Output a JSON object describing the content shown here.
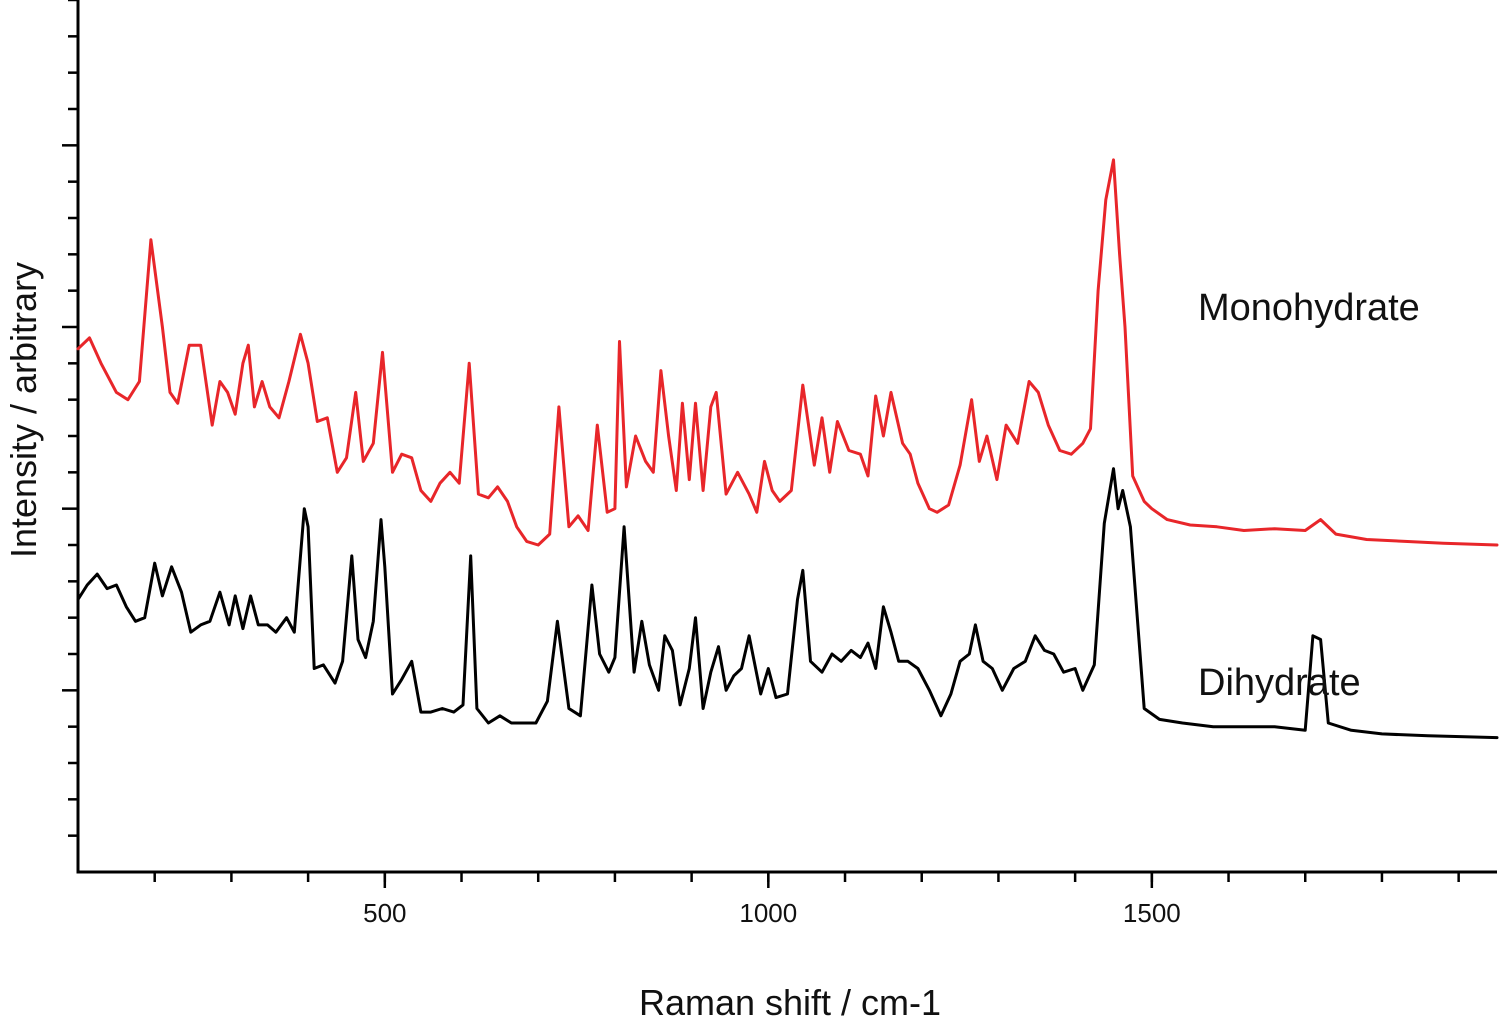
{
  "chart_data": {
    "type": "line",
    "xlabel": "Raman shift / cm-1",
    "ylabel": "Intensity / arbitrary",
    "xlim": [
      100,
      1950
    ],
    "ylim": [
      0,
      24
    ],
    "x_ticks": [
      500,
      1000,
      1500
    ],
    "x_tick_labels": [
      "500",
      "1000",
      "1500"
    ],
    "y_ticks_labeled": false,
    "grid": false,
    "legend": "none",
    "series": [
      {
        "name": "Monohydrate",
        "color": "#e8262a",
        "x": [
          100,
          115,
          130,
          150,
          165,
          180,
          195,
          210,
          220,
          230,
          245,
          260,
          275,
          285,
          295,
          305,
          315,
          322,
          330,
          340,
          350,
          362,
          375,
          390,
          400,
          412,
          425,
          438,
          450,
          462,
          472,
          485,
          497,
          510,
          522,
          535,
          547,
          560,
          572,
          585,
          597,
          610,
          622,
          635,
          647,
          660,
          672,
          685,
          700,
          715,
          727,
          740,
          752,
          765,
          777,
          790,
          800,
          806,
          815,
          827,
          840,
          850,
          860,
          870,
          880,
          888,
          897,
          905,
          915,
          925,
          932,
          945,
          960,
          975,
          985,
          995,
          1005,
          1015,
          1030,
          1045,
          1060,
          1070,
          1080,
          1090,
          1105,
          1120,
          1130,
          1140,
          1150,
          1160,
          1175,
          1185,
          1195,
          1210,
          1220,
          1235,
          1250,
          1265,
          1275,
          1285,
          1298,
          1310,
          1325,
          1340,
          1352,
          1365,
          1380,
          1395,
          1410,
          1420,
          1430,
          1440,
          1450,
          1458,
          1465,
          1475,
          1490,
          1500,
          1520,
          1550,
          1585,
          1620,
          1660,
          1700,
          1720,
          1740,
          1780,
          1830,
          1880,
          1950
        ],
        "values": [
          14.4,
          14.7,
          14.0,
          13.2,
          13.0,
          13.5,
          17.4,
          15.0,
          13.2,
          12.9,
          14.5,
          14.5,
          12.3,
          13.5,
          13.2,
          12.6,
          14.0,
          14.5,
          12.8,
          13.5,
          12.8,
          12.5,
          13.5,
          14.8,
          14.0,
          12.4,
          12.5,
          11.0,
          11.4,
          13.2,
          11.3,
          11.8,
          14.3,
          11.0,
          11.5,
          11.4,
          10.5,
          10.2,
          10.7,
          11.0,
          10.7,
          14.0,
          10.4,
          10.3,
          10.6,
          10.2,
          9.5,
          9.1,
          9.0,
          9.3,
          12.8,
          9.5,
          9.8,
          9.4,
          12.3,
          9.9,
          10.0,
          14.6,
          10.6,
          12.0,
          11.3,
          11.0,
          13.8,
          12.0,
          10.5,
          12.9,
          10.8,
          12.9,
          10.5,
          12.8,
          13.2,
          10.4,
          11.0,
          10.4,
          9.9,
          11.3,
          10.5,
          10.2,
          10.5,
          13.4,
          11.2,
          12.5,
          11.0,
          12.4,
          11.6,
          11.5,
          10.9,
          13.1,
          12.0,
          13.2,
          11.8,
          11.5,
          10.7,
          10.0,
          9.9,
          10.1,
          11.2,
          13.0,
          11.3,
          12.0,
          10.8,
          12.3,
          11.8,
          13.5,
          13.2,
          12.3,
          11.6,
          11.5,
          11.8,
          12.2,
          16.0,
          18.5,
          19.6,
          17.0,
          15.0,
          10.9,
          10.2,
          10.0,
          9.7,
          9.55,
          9.5,
          9.4,
          9.45,
          9.4,
          9.7,
          9.3,
          9.15,
          9.1,
          9.05,
          9.0
        ]
      },
      {
        "name": "Dihydrate",
        "color": "#000000",
        "x": [
          100,
          112,
          125,
          138,
          150,
          163,
          175,
          187,
          200,
          210,
          222,
          235,
          247,
          260,
          272,
          285,
          297,
          305,
          315,
          325,
          335,
          347,
          358,
          372,
          382,
          395,
          400,
          408,
          420,
          435,
          445,
          457,
          465,
          475,
          485,
          495,
          500,
          510,
          522,
          535,
          547,
          560,
          575,
          590,
          602,
          612,
          620,
          635,
          650,
          665,
          680,
          697,
          712,
          725,
          740,
          755,
          770,
          780,
          792,
          800,
          812,
          825,
          835,
          845,
          857,
          865,
          875,
          885,
          897,
          905,
          915,
          925,
          935,
          945,
          955,
          965,
          975,
          990,
          1000,
          1010,
          1025,
          1038,
          1045,
          1055,
          1070,
          1083,
          1095,
          1108,
          1120,
          1130,
          1140,
          1150,
          1160,
          1170,
          1182,
          1195,
          1210,
          1225,
          1238,
          1250,
          1262,
          1270,
          1280,
          1292,
          1305,
          1320,
          1335,
          1348,
          1360,
          1372,
          1385,
          1400,
          1410,
          1425,
          1438,
          1450,
          1456,
          1462,
          1472,
          1490,
          1510,
          1540,
          1580,
          1620,
          1660,
          1700,
          1710,
          1720,
          1730,
          1760,
          1800,
          1860,
          1950
        ],
        "values": [
          7.5,
          7.9,
          8.2,
          7.8,
          7.9,
          7.3,
          6.9,
          7.0,
          8.5,
          7.6,
          8.4,
          7.7,
          6.6,
          6.8,
          6.9,
          7.7,
          6.8,
          7.6,
          6.7,
          7.6,
          6.8,
          6.8,
          6.6,
          7.0,
          6.6,
          10.0,
          9.5,
          5.6,
          5.7,
          5.2,
          5.8,
          8.7,
          6.4,
          5.9,
          6.9,
          9.7,
          8.4,
          4.9,
          5.3,
          5.8,
          4.4,
          4.4,
          4.5,
          4.4,
          4.6,
          8.7,
          4.5,
          4.1,
          4.3,
          4.1,
          4.1,
          4.1,
          4.7,
          6.9,
          4.5,
          4.3,
          7.9,
          6.0,
          5.5,
          5.9,
          9.5,
          5.5,
          6.9,
          5.7,
          5.0,
          6.5,
          6.1,
          4.6,
          5.6,
          7.0,
          4.5,
          5.5,
          6.2,
          5.0,
          5.4,
          5.6,
          6.5,
          4.9,
          5.6,
          4.8,
          4.9,
          7.5,
          8.3,
          5.8,
          5.5,
          6.0,
          5.8,
          6.1,
          5.9,
          6.3,
          5.6,
          7.3,
          6.6,
          5.8,
          5.8,
          5.6,
          5.0,
          4.3,
          4.9,
          5.8,
          6.0,
          6.8,
          5.8,
          5.6,
          5.0,
          5.6,
          5.8,
          6.5,
          6.1,
          6.0,
          5.5,
          5.6,
          5.0,
          5.7,
          9.6,
          11.1,
          10.0,
          10.5,
          9.5,
          4.5,
          4.2,
          4.1,
          4.0,
          4.0,
          4.0,
          3.9,
          6.5,
          6.4,
          4.1,
          3.9,
          3.8,
          3.75,
          3.7
        ]
      }
    ]
  }
}
